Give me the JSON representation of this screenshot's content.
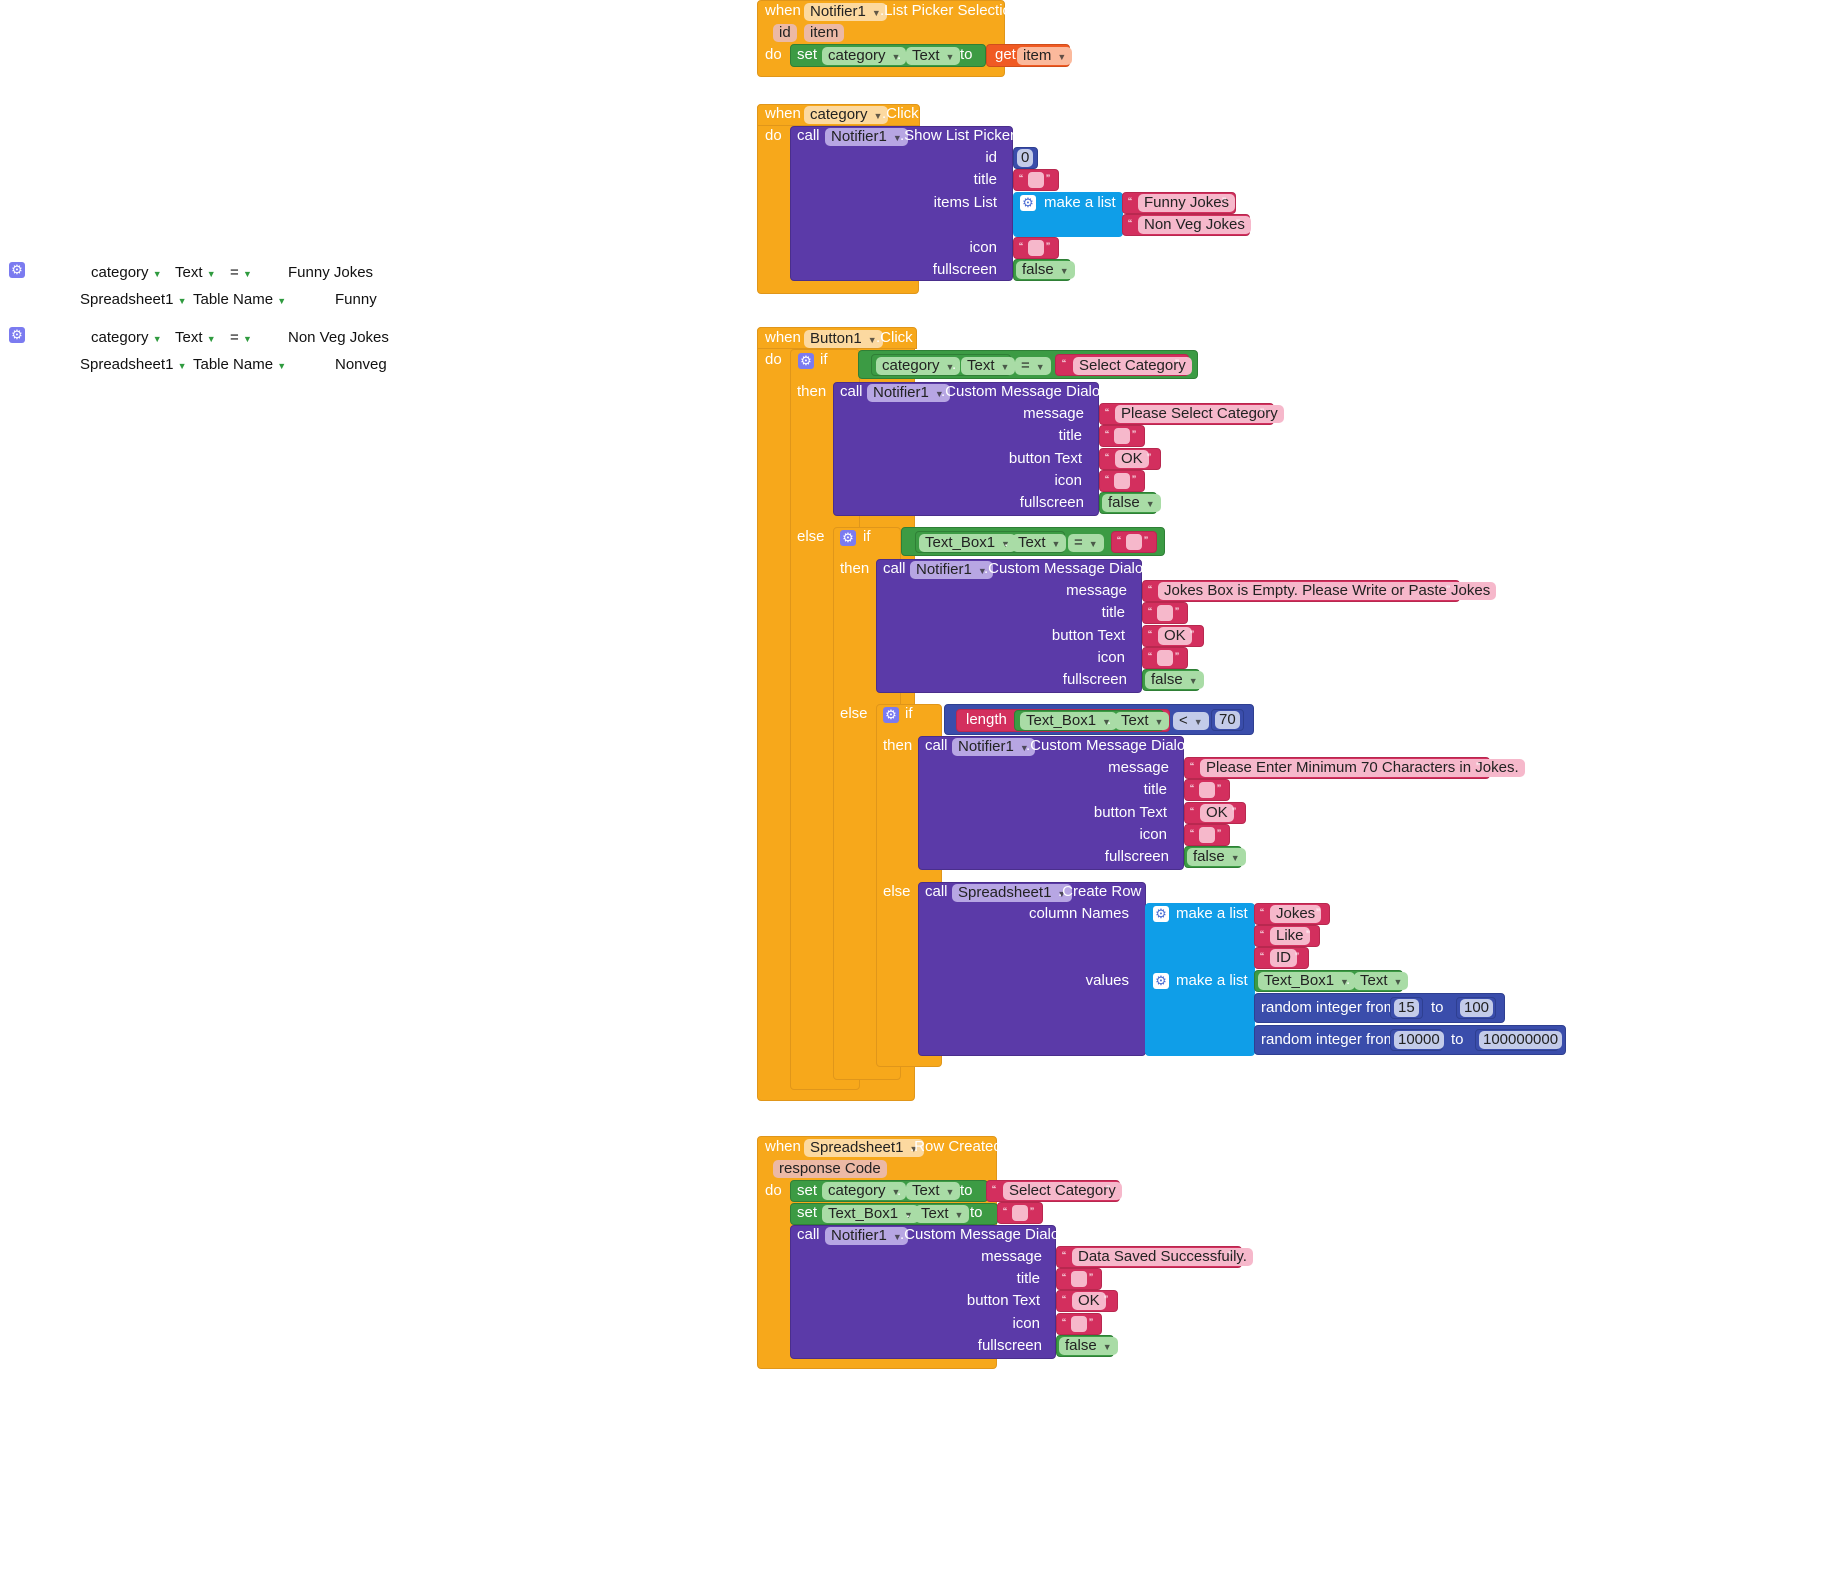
{
  "common": {
    "when": "when",
    "do": "do",
    "call": "call",
    "set": "set",
    "get": "get",
    "to": "to",
    "if": "if",
    "then": "then",
    "else": "else",
    "dot": ".",
    "eq": "=",
    "lt": "<",
    "make_a_list": "make a list",
    "random_integer_from": "random integer from",
    "length": "length",
    "false": "false",
    "ok": "OK",
    "empty": "",
    "qo": "“",
    "qc": "”",
    "params": {
      "message": "message",
      "title": "title",
      "button_text": "button Text",
      "icon": "icon",
      "fullscreen": "fullscreen",
      "id": "id",
      "items_list": "items List",
      "column_names": "column Names",
      "values": "values"
    }
  },
  "components": {
    "notifier": "Notifier1",
    "category": "category",
    "button": "Button1",
    "spreadsheet": "Spreadsheet1",
    "textbox": "Text_Box1",
    "text_prop": "Text"
  },
  "left_panel": {
    "rows": [
      {
        "c1": "category",
        "c2": "Text",
        "op": "=",
        "val": "Funny Jokes",
        "c3": "Spreadsheet1",
        "c4": "Table Name",
        "val2": "Funny"
      },
      {
        "c1": "category",
        "c2": "Text",
        "op": "=",
        "val": "Non Veg Jokes",
        "c3": "Spreadsheet1",
        "c4": "Table Name",
        "val2": "Nonveg"
      }
    ]
  },
  "block1": {
    "event": ".List Picker Selection",
    "param_id": "id",
    "param_item": "item",
    "var": "item"
  },
  "block2": {
    "event": ".Click",
    "method": ".Show List Picker",
    "id_value": "0",
    "item1": "Funny Jokes",
    "item2": "Non Veg Jokes"
  },
  "block3": {
    "event": ".Click",
    "compare": "Select Category",
    "method": ".Custom Message Dialog",
    "msg1": "Please Select Category",
    "msg2": "Jokes Box is Empty. Please Write or Paste Jokes",
    "msg3": "Please Enter Minimum 70 Characters in Jokes.",
    "min_len": "70",
    "create_row": ".Create Row",
    "col1": "Jokes",
    "col2": "Like",
    "col3": "ID",
    "r1_from": "15",
    "r1_to": "100",
    "r2_from": "10000",
    "r2_to": "100000000"
  },
  "block4": {
    "event": ".Row Created",
    "param": "response Code",
    "reset": "Select Category",
    "method": ".Custom Message Dialog",
    "msg": "Data Saved Successfully."
  },
  "colors": {
    "event": "#f7a81b",
    "component_call": "#5b3aa8",
    "setter": "#3c9b44",
    "text": "#d32f5e",
    "list": "#0f9ee8",
    "math": "#3a4dab"
  }
}
